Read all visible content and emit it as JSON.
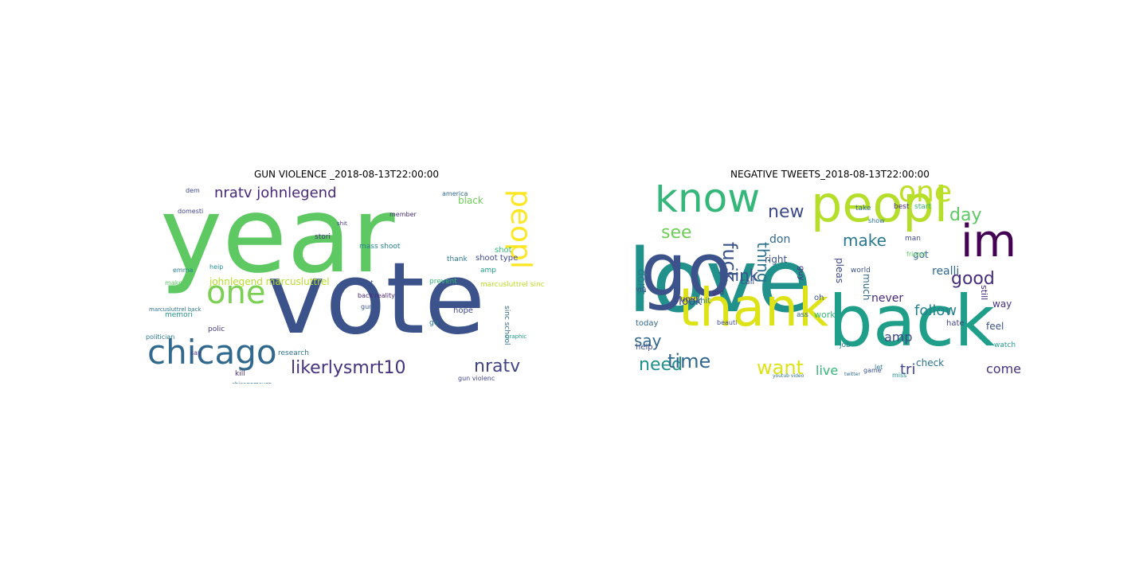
{
  "panels": [
    {
      "title": "GUN VIOLENCE _2018-08-13T22:00:00",
      "words": [
        {
          "text": "year",
          "color": "#5ec962",
          "size": 132
        },
        {
          "text": "vote",
          "color": "#3b528b",
          "size": 124
        },
        {
          "text": "chicago",
          "color": "#31688e",
          "size": 42
        },
        {
          "text": "one",
          "color": "#7ad151",
          "size": 40
        },
        {
          "text": "peopl",
          "color": "#fde725",
          "size": 36
        },
        {
          "text": "likerlysmrt10",
          "color": "#46327e",
          "size": 22
        },
        {
          "text": "nratv",
          "color": "#414487",
          "size": 22
        },
        {
          "text": "nratv johnlegend",
          "color": "#482878",
          "size": 18
        },
        {
          "text": "johnlegend marcusluttrel",
          "color": "#b5de2b",
          "size": 12
        },
        {
          "text": "black",
          "color": "#6ece58",
          "size": 12
        },
        {
          "text": "shoot type",
          "color": "#3e4989",
          "size": 10
        },
        {
          "text": "mass shoot",
          "color": "#26828e",
          "size": 9
        },
        {
          "text": "thank",
          "color": "#2a788e",
          "size": 9
        },
        {
          "text": "shot",
          "color": "#35b779",
          "size": 10
        },
        {
          "text": "amp",
          "color": "#1f9e89",
          "size": 9
        },
        {
          "text": "marcusluttrel sinc",
          "color": "#bddf26",
          "size": 9
        },
        {
          "text": "sinc school",
          "color": "#31688e",
          "size": 9
        },
        {
          "text": "hope",
          "color": "#3e4989",
          "size": 10
        },
        {
          "text": "kill",
          "color": "#472d7b",
          "size": 9
        },
        {
          "text": "research",
          "color": "#2c728e",
          "size": 9
        },
        {
          "text": "gun violenc",
          "color": "#414487",
          "size": 8
        },
        {
          "text": "memori",
          "color": "#21918c",
          "size": 9
        },
        {
          "text": "polic",
          "color": "#443983",
          "size": 9
        },
        {
          "text": "politician",
          "color": "#2a788e",
          "size": 8
        },
        {
          "text": "stori",
          "color": "#46327e",
          "size": 9
        },
        {
          "text": "prevent",
          "color": "#35b779",
          "size": 9
        },
        {
          "text": "want",
          "color": "#3b528b",
          "size": 8
        },
        {
          "text": "back reality",
          "color": "#482878",
          "size": 8
        },
        {
          "text": "member",
          "color": "#472d7b",
          "size": 8
        },
        {
          "text": "america",
          "color": "#31688e",
          "size": 8
        },
        {
          "text": "emma",
          "color": "#26828e",
          "size": 8
        },
        {
          "text": "make",
          "color": "#5ec962",
          "size": 8
        },
        {
          "text": "say",
          "color": "#443983",
          "size": 8
        },
        {
          "text": "go",
          "color": "#2a788e",
          "size": 9
        },
        {
          "text": "dem",
          "color": "#3e4989",
          "size": 8
        },
        {
          "text": "heip",
          "color": "#21918c",
          "size": 8
        },
        {
          "text": "chicagomayor",
          "color": "#31688e",
          "size": 7
        },
        {
          "text": "marcusluttrel back",
          "color": "#2c728e",
          "size": 7
        },
        {
          "text": "graphic",
          "color": "#1f9e89",
          "size": 7
        },
        {
          "text": "gun",
          "color": "#3b528b",
          "size": 8
        },
        {
          "text": "shit",
          "color": "#443983",
          "size": 7
        },
        {
          "text": "domesti",
          "color": "#414487",
          "size": 8
        }
      ]
    },
    {
      "title": "NEGATIVE TWEETS_2018-08-13T22:00:00",
      "words": [
        {
          "text": "love",
          "color": "#21918c",
          "size": 110
        },
        {
          "text": "back",
          "color": "#1f9e89",
          "size": 88
        },
        {
          "text": "peopl",
          "color": "#b5de2b",
          "size": 62
        },
        {
          "text": "go",
          "color": "#3b528b",
          "size": 92
        },
        {
          "text": "thank",
          "color": "#dde318",
          "size": 66
        },
        {
          "text": "know",
          "color": "#35b779",
          "size": 50
        },
        {
          "text": "im",
          "color": "#440154",
          "size": 56
        },
        {
          "text": "one",
          "color": "#bddf26",
          "size": 36
        },
        {
          "text": "good",
          "color": "#472d7b",
          "size": 22
        },
        {
          "text": "day",
          "color": "#5ec962",
          "size": 22
        },
        {
          "text": "fuck",
          "color": "#3b528b",
          "size": 24
        },
        {
          "text": "thing",
          "color": "#2c728e",
          "size": 20
        },
        {
          "text": "new",
          "color": "#3e4989",
          "size": 22
        },
        {
          "text": "see",
          "color": "#6ece58",
          "size": 22
        },
        {
          "text": "make",
          "color": "#2a788e",
          "size": 20
        },
        {
          "text": "think",
          "color": "#3b528b",
          "size": 20
        },
        {
          "text": "follow",
          "color": "#26828e",
          "size": 18
        },
        {
          "text": "say",
          "color": "#31688e",
          "size": 20
        },
        {
          "text": "need",
          "color": "#21918c",
          "size": 22
        },
        {
          "text": "time",
          "color": "#31688e",
          "size": 24
        },
        {
          "text": "want",
          "color": "#dde318",
          "size": 24
        },
        {
          "text": "live",
          "color": "#35b779",
          "size": 16
        },
        {
          "text": "amp",
          "color": "#3e4989",
          "size": 16
        },
        {
          "text": "tri",
          "color": "#414487",
          "size": 18
        },
        {
          "text": "come",
          "color": "#46327e",
          "size": 16
        },
        {
          "text": "look",
          "color": "#3e4989",
          "size": 14
        },
        {
          "text": "never",
          "color": "#482878",
          "size": 14
        },
        {
          "text": "dont",
          "color": "#2a788e",
          "size": 14
        },
        {
          "text": "realli",
          "color": "#31688e",
          "size": 14
        },
        {
          "text": "feel",
          "color": "#3b528b",
          "size": 12
        },
        {
          "text": "way",
          "color": "#46327e",
          "size": 12
        },
        {
          "text": "much",
          "color": "#31688e",
          "size": 12
        },
        {
          "text": "pleas",
          "color": "#3e4989",
          "size": 12
        },
        {
          "text": "don",
          "color": "#31688e",
          "size": 14
        },
        {
          "text": "right",
          "color": "#3b528b",
          "size": 12
        },
        {
          "text": "work",
          "color": "#35b779",
          "size": 11
        },
        {
          "text": "check",
          "color": "#2c728e",
          "size": 12
        },
        {
          "text": "got",
          "color": "#31688e",
          "size": 12
        },
        {
          "text": "still",
          "color": "#472d7b",
          "size": 11
        },
        {
          "text": "watch",
          "color": "#1f9e89",
          "size": 9
        },
        {
          "text": "hate",
          "color": "#414487",
          "size": 10
        },
        {
          "text": "today",
          "color": "#31688e",
          "size": 10
        },
        {
          "text": "help",
          "color": "#3e4989",
          "size": 10
        },
        {
          "text": "trump",
          "color": "#414487",
          "size": 10
        },
        {
          "text": "shit",
          "color": "#2c728e",
          "size": 10
        },
        {
          "text": "guy",
          "color": "#46327e",
          "size": 10
        },
        {
          "text": "oh",
          "color": "#3b528b",
          "size": 10
        },
        {
          "text": "ass",
          "color": "#31688e",
          "size": 9
        },
        {
          "text": "job",
          "color": "#26828e",
          "size": 9
        },
        {
          "text": "call",
          "color": "#3e4989",
          "size": 10
        },
        {
          "text": "best",
          "color": "#482878",
          "size": 9
        },
        {
          "text": "start",
          "color": "#35b779",
          "size": 9
        },
        {
          "text": "show",
          "color": "#2c728e",
          "size": 8
        },
        {
          "text": "world",
          "color": "#3b528b",
          "size": 9
        },
        {
          "text": "friend",
          "color": "#5ec962",
          "size": 8
        },
        {
          "text": "take",
          "color": "#31688e",
          "size": 9
        },
        {
          "text": "man",
          "color": "#3e4989",
          "size": 9
        },
        {
          "text": "via",
          "color": "#3b528b",
          "size": 9
        },
        {
          "text": "god",
          "color": "#472d7b",
          "size": 8
        },
        {
          "text": "beauti",
          "color": "#3e4989",
          "size": 8
        },
        {
          "text": "let",
          "color": "#2a788e",
          "size": 8
        },
        {
          "text": "miss",
          "color": "#21918c",
          "size": 8
        },
        {
          "text": "game",
          "color": "#3b528b",
          "size": 8
        },
        {
          "text": "youtub video",
          "color": "#2c728e",
          "size": 6
        },
        {
          "text": "twitter",
          "color": "#31688e",
          "size": 6
        }
      ]
    }
  ]
}
